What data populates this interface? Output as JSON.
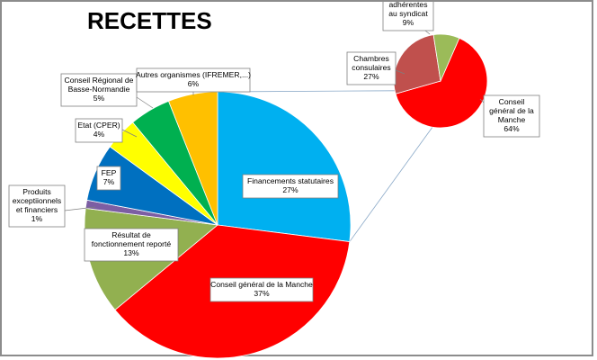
{
  "chart_data": {
    "type": "pie",
    "subtype": "pie-of-pie",
    "title": "RECETTES",
    "slices": [
      {
        "label": "Financements statutaires",
        "value": 27,
        "value_label": "27%",
        "color": "#00b0f0"
      },
      {
        "label": "Conseil général de la Manche",
        "value": 37,
        "value_label": "37%",
        "color": "#ff0000"
      },
      {
        "label": "Résultat de fonctionnement reporté",
        "value": 13,
        "value_label": "13%",
        "color": "#92b050"
      },
      {
        "label": "Produits exceptionnels et financiers",
        "value": 1,
        "value_label": "1%",
        "color": "#7c5ea3"
      },
      {
        "label": "FEP",
        "value": 7,
        "value_label": "7%",
        "color": "#0070c0"
      },
      {
        "label": "Etat (CPER)",
        "value": 4,
        "value_label": "4%",
        "color": "#ffff00"
      },
      {
        "label": "Conseil Régional de Basse-Normandie",
        "value": 5,
        "value_label": "5%",
        "color": "#00b050"
      },
      {
        "label": "Autres organismes (IFREMER,...)",
        "value": 6,
        "value_label": "6%",
        "color": "#ffc000"
      }
    ],
    "breakdown_of": "Financements statutaires",
    "breakdown": [
      {
        "label": "Conseil général de la Manche",
        "value": 64,
        "value_label": "64%",
        "color": "#ff0000"
      },
      {
        "label": "Chambres consulaires",
        "value": 27,
        "value_label": "27%",
        "color": "#c0504d"
      },
      {
        "label": "adhérentes au syndicat",
        "value": 9,
        "value_label": "9%",
        "color": "#9bbb59"
      }
    ]
  }
}
